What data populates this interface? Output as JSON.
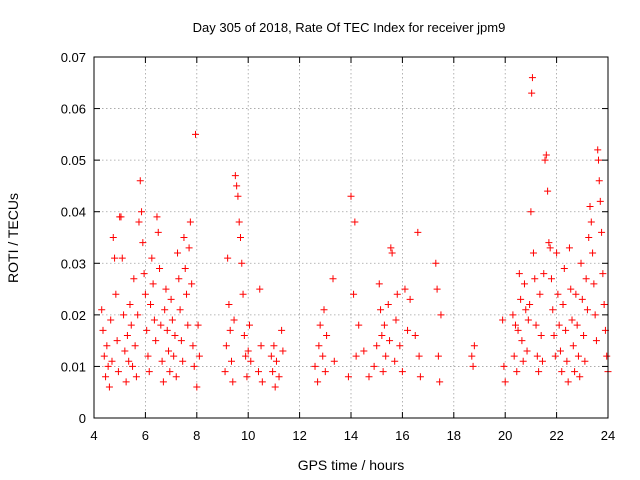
{
  "chart_data": {
    "type": "scatter",
    "title": "Day 305 of 2018, Rate Of TEC Index for receiver jpm9",
    "xlabel": "GPS time / hours",
    "ylabel": "ROTI / TECUs",
    "xlim": [
      4,
      24
    ],
    "ylim": [
      0,
      0.07
    ],
    "xticks": [
      4,
      6,
      8,
      10,
      12,
      14,
      16,
      18,
      20,
      22,
      24
    ],
    "yticks": [
      0,
      0.01,
      0.02,
      0.03,
      0.04,
      0.05,
      0.06,
      0.07
    ],
    "ytick_labels": [
      "0",
      "0.01",
      "0.02",
      "0.03",
      "0.04",
      "0.05",
      "0.06",
      "0.07"
    ],
    "grid": true,
    "marker": "+",
    "color": "#ff0000",
    "series": [
      {
        "name": "ROTI",
        "points": [
          [
            4.3,
            0.021
          ],
          [
            4.35,
            0.017
          ],
          [
            4.4,
            0.012
          ],
          [
            4.45,
            0.008
          ],
          [
            4.5,
            0.014
          ],
          [
            4.55,
            0.01
          ],
          [
            4.6,
            0.006
          ],
          [
            4.65,
            0.019
          ],
          [
            4.7,
            0.011
          ],
          [
            4.75,
            0.035
          ],
          [
            4.8,
            0.031
          ],
          [
            4.85,
            0.024
          ],
          [
            4.9,
            0.015
          ],
          [
            4.95,
            0.009
          ],
          [
            5.0,
            0.039
          ],
          [
            5.05,
            0.039
          ],
          [
            5.1,
            0.031
          ],
          [
            5.15,
            0.02
          ],
          [
            5.2,
            0.013
          ],
          [
            5.25,
            0.007
          ],
          [
            5.3,
            0.016
          ],
          [
            5.35,
            0.011
          ],
          [
            5.4,
            0.022
          ],
          [
            5.45,
            0.018
          ],
          [
            5.5,
            0.01
          ],
          [
            5.55,
            0.027
          ],
          [
            5.6,
            0.014
          ],
          [
            5.65,
            0.008
          ],
          [
            5.7,
            0.02
          ],
          [
            5.75,
            0.038
          ],
          [
            5.8,
            0.046
          ],
          [
            5.85,
            0.04
          ],
          [
            5.9,
            0.034
          ],
          [
            5.95,
            0.028
          ],
          [
            6.0,
            0.024
          ],
          [
            6.05,
            0.017
          ],
          [
            6.1,
            0.012
          ],
          [
            6.15,
            0.009
          ],
          [
            6.2,
            0.022
          ],
          [
            6.25,
            0.031
          ],
          [
            6.3,
            0.026
          ],
          [
            6.35,
            0.019
          ],
          [
            6.4,
            0.015
          ],
          [
            6.45,
            0.039
          ],
          [
            6.5,
            0.036
          ],
          [
            6.55,
            0.029
          ],
          [
            6.6,
            0.018
          ],
          [
            6.65,
            0.011
          ],
          [
            6.7,
            0.007
          ],
          [
            6.75,
            0.021
          ],
          [
            6.8,
            0.025
          ],
          [
            6.85,
            0.017
          ],
          [
            6.9,
            0.013
          ],
          [
            6.95,
            0.009
          ],
          [
            7.0,
            0.023
          ],
          [
            7.05,
            0.019
          ],
          [
            7.1,
            0.012
          ],
          [
            7.15,
            0.016
          ],
          [
            7.2,
            0.008
          ],
          [
            7.25,
            0.032
          ],
          [
            7.3,
            0.027
          ],
          [
            7.35,
            0.021
          ],
          [
            7.4,
            0.015
          ],
          [
            7.45,
            0.011
          ],
          [
            7.5,
            0.035
          ],
          [
            7.55,
            0.029
          ],
          [
            7.6,
            0.024
          ],
          [
            7.65,
            0.018
          ],
          [
            7.7,
            0.033
          ],
          [
            7.75,
            0.038
          ],
          [
            7.8,
            0.026
          ],
          [
            7.85,
            0.014
          ],
          [
            7.9,
            0.01
          ],
          [
            7.95,
            0.055
          ],
          [
            8.0,
            0.006
          ],
          [
            8.05,
            0.018
          ],
          [
            8.1,
            0.012
          ],
          [
            9.1,
            0.009
          ],
          [
            9.15,
            0.014
          ],
          [
            9.2,
            0.031
          ],
          [
            9.25,
            0.022
          ],
          [
            9.3,
            0.017
          ],
          [
            9.35,
            0.011
          ],
          [
            9.4,
            0.007
          ],
          [
            9.45,
            0.019
          ],
          [
            9.5,
            0.047
          ],
          [
            9.55,
            0.045
          ],
          [
            9.6,
            0.043
          ],
          [
            9.65,
            0.038
          ],
          [
            9.7,
            0.035
          ],
          [
            9.75,
            0.03
          ],
          [
            9.8,
            0.024
          ],
          [
            9.85,
            0.016
          ],
          [
            9.9,
            0.012
          ],
          [
            9.95,
            0.008
          ],
          [
            10.0,
            0.013
          ],
          [
            10.05,
            0.018
          ],
          [
            10.1,
            0.011
          ],
          [
            10.4,
            0.009
          ],
          [
            10.45,
            0.025
          ],
          [
            10.5,
            0.014
          ],
          [
            10.55,
            0.007
          ],
          [
            10.9,
            0.012
          ],
          [
            10.95,
            0.009
          ],
          [
            11.0,
            0.014
          ],
          [
            11.05,
            0.006
          ],
          [
            11.1,
            0.011
          ],
          [
            11.2,
            0.008
          ],
          [
            11.3,
            0.017
          ],
          [
            11.35,
            0.013
          ],
          [
            12.6,
            0.01
          ],
          [
            12.7,
            0.007
          ],
          [
            12.75,
            0.014
          ],
          [
            12.8,
            0.018
          ],
          [
            12.9,
            0.012
          ],
          [
            12.95,
            0.021
          ],
          [
            13.0,
            0.009
          ],
          [
            13.05,
            0.016
          ],
          [
            13.3,
            0.027
          ],
          [
            13.35,
            0.011
          ],
          [
            13.9,
            0.008
          ],
          [
            14.0,
            0.043
          ],
          [
            14.1,
            0.024
          ],
          [
            14.15,
            0.038
          ],
          [
            14.2,
            0.012
          ],
          [
            14.3,
            0.018
          ],
          [
            14.5,
            0.013
          ],
          [
            14.7,
            0.008
          ],
          [
            14.9,
            0.01
          ],
          [
            15.0,
            0.014
          ],
          [
            15.1,
            0.026
          ],
          [
            15.15,
            0.021
          ],
          [
            15.2,
            0.016
          ],
          [
            15.25,
            0.009
          ],
          [
            15.3,
            0.018
          ],
          [
            15.35,
            0.012
          ],
          [
            15.45,
            0.022
          ],
          [
            15.5,
            0.015
          ],
          [
            15.55,
            0.033
          ],
          [
            15.6,
            0.032
          ],
          [
            15.7,
            0.011
          ],
          [
            15.75,
            0.019
          ],
          [
            15.8,
            0.024
          ],
          [
            15.9,
            0.014
          ],
          [
            16.0,
            0.009
          ],
          [
            16.1,
            0.025
          ],
          [
            16.2,
            0.017
          ],
          [
            16.3,
            0.023
          ],
          [
            16.5,
            0.016
          ],
          [
            16.6,
            0.036
          ],
          [
            16.65,
            0.012
          ],
          [
            16.7,
            0.008
          ],
          [
            17.3,
            0.03
          ],
          [
            17.35,
            0.025
          ],
          [
            17.4,
            0.012
          ],
          [
            17.45,
            0.007
          ],
          [
            17.5,
            0.02
          ],
          [
            18.7,
            0.012
          ],
          [
            18.75,
            0.01
          ],
          [
            18.8,
            0.014
          ],
          [
            19.9,
            0.019
          ],
          [
            19.95,
            0.01
          ],
          [
            20.0,
            0.007
          ],
          [
            20.3,
            0.02
          ],
          [
            20.35,
            0.012
          ],
          [
            20.4,
            0.018
          ],
          [
            20.45,
            0.009
          ],
          [
            20.5,
            0.017
          ],
          [
            20.55,
            0.028
          ],
          [
            20.6,
            0.023
          ],
          [
            20.65,
            0.015
          ],
          [
            20.7,
            0.011
          ],
          [
            20.75,
            0.026
          ],
          [
            20.8,
            0.021
          ],
          [
            20.85,
            0.013
          ],
          [
            20.9,
            0.019
          ],
          [
            20.95,
            0.022
          ],
          [
            21.0,
            0.04
          ],
          [
            21.03,
            0.063
          ],
          [
            21.06,
            0.066
          ],
          [
            21.1,
            0.032
          ],
          [
            21.15,
            0.027
          ],
          [
            21.2,
            0.018
          ],
          [
            21.25,
            0.012
          ],
          [
            21.3,
            0.009
          ],
          [
            21.35,
            0.024
          ],
          [
            21.4,
            0.016
          ],
          [
            21.45,
            0.011
          ],
          [
            21.5,
            0.028
          ],
          [
            21.55,
            0.05
          ],
          [
            21.6,
            0.051
          ],
          [
            21.65,
            0.044
          ],
          [
            21.7,
            0.034
          ],
          [
            21.75,
            0.033
          ],
          [
            21.8,
            0.027
          ],
          [
            21.85,
            0.021
          ],
          [
            21.9,
            0.016
          ],
          [
            21.95,
            0.012
          ],
          [
            22.0,
            0.032
          ],
          [
            22.05,
            0.024
          ],
          [
            22.1,
            0.018
          ],
          [
            22.15,
            0.013
          ],
          [
            22.2,
            0.009
          ],
          [
            22.25,
            0.022
          ],
          [
            22.3,
            0.029
          ],
          [
            22.35,
            0.017
          ],
          [
            22.4,
            0.011
          ],
          [
            22.45,
            0.007
          ],
          [
            22.5,
            0.033
          ],
          [
            22.55,
            0.025
          ],
          [
            22.6,
            0.019
          ],
          [
            22.65,
            0.014
          ],
          [
            22.7,
            0.009
          ],
          [
            22.75,
            0.024
          ],
          [
            22.8,
            0.018
          ],
          [
            22.85,
            0.012
          ],
          [
            22.9,
            0.008
          ],
          [
            22.95,
            0.03
          ],
          [
            23.0,
            0.023
          ],
          [
            23.05,
            0.016
          ],
          [
            23.1,
            0.011
          ],
          [
            23.15,
            0.027
          ],
          [
            23.2,
            0.021
          ],
          [
            23.25,
            0.035
          ],
          [
            23.3,
            0.041
          ],
          [
            23.35,
            0.038
          ],
          [
            23.4,
            0.032
          ],
          [
            23.45,
            0.026
          ],
          [
            23.5,
            0.02
          ],
          [
            23.55,
            0.015
          ],
          [
            23.6,
            0.052
          ],
          [
            23.63,
            0.05
          ],
          [
            23.66,
            0.046
          ],
          [
            23.7,
            0.042
          ],
          [
            23.75,
            0.036
          ],
          [
            23.8,
            0.028
          ],
          [
            23.85,
            0.022
          ],
          [
            23.9,
            0.017
          ],
          [
            23.95,
            0.012
          ],
          [
            24.0,
            0.009
          ]
        ]
      }
    ]
  }
}
